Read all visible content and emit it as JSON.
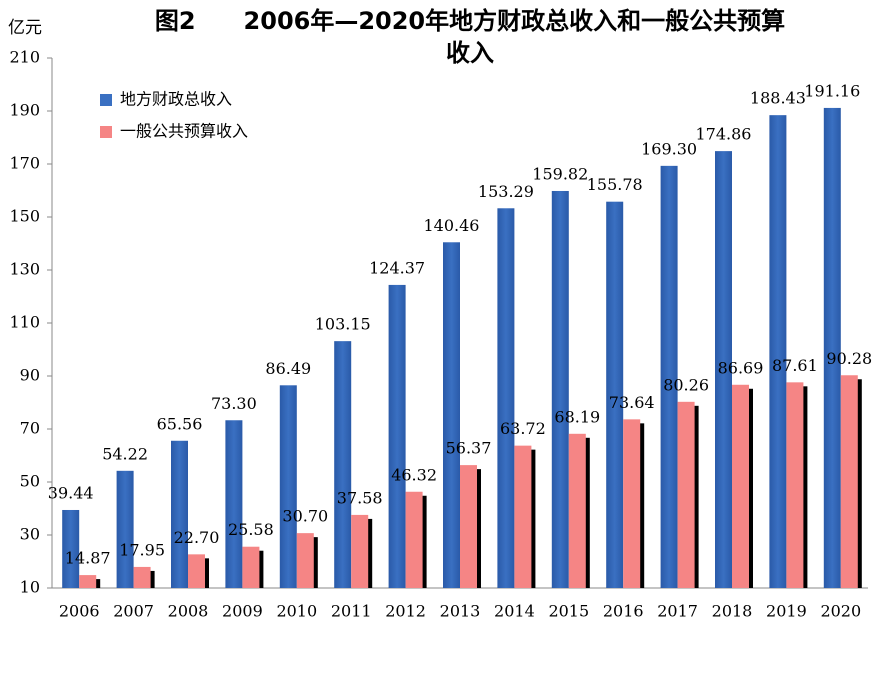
{
  "chart_data": {
    "type": "bar",
    "title": [
      "图2　　2006年—2020年地方财政总收入和一般公共预算",
      "收入"
    ],
    "y_label": "亿元",
    "categories": [
      "2006",
      "2007",
      "2008",
      "2009",
      "2010",
      "2011",
      "2012",
      "2013",
      "2014",
      "2015",
      "2016",
      "2017",
      "2018",
      "2019",
      "2020"
    ],
    "series": [
      {
        "name": "地方财政总收入",
        "color": "#3a70c2",
        "values": [
          39.44,
          54.22,
          65.56,
          73.3,
          86.49,
          103.15,
          124.37,
          140.46,
          153.29,
          159.82,
          155.78,
          169.3,
          174.86,
          188.43,
          191.16
        ],
        "value_labels": [
          "39.44",
          "54.22",
          "65.56",
          "73.30",
          "86.49",
          "103.15",
          "124.37",
          "140.46",
          "153.29",
          "159.82",
          "155.78",
          "169.30",
          "174.86",
          "188.43",
          "191.16"
        ]
      },
      {
        "name": "一般公共预算收入",
        "color": "#f58585",
        "values": [
          14.87,
          17.95,
          22.7,
          25.58,
          30.7,
          37.58,
          46.32,
          56.37,
          63.72,
          68.19,
          73.64,
          80.26,
          86.69,
          87.61,
          90.28
        ],
        "value_labels": [
          "14.87",
          "17.95",
          "22.70",
          "25.58",
          "30.70",
          "37.58",
          "46.32",
          "56.37",
          "63.72",
          "68.19",
          "73.64",
          "80.26",
          "86.69",
          "87.61",
          "90.28"
        ]
      }
    ],
    "ylim": [
      10,
      210
    ],
    "yticks": [
      10,
      30,
      50,
      70,
      90,
      110,
      130,
      150,
      170,
      190,
      210
    ],
    "grid": false,
    "legend": "top-left"
  }
}
